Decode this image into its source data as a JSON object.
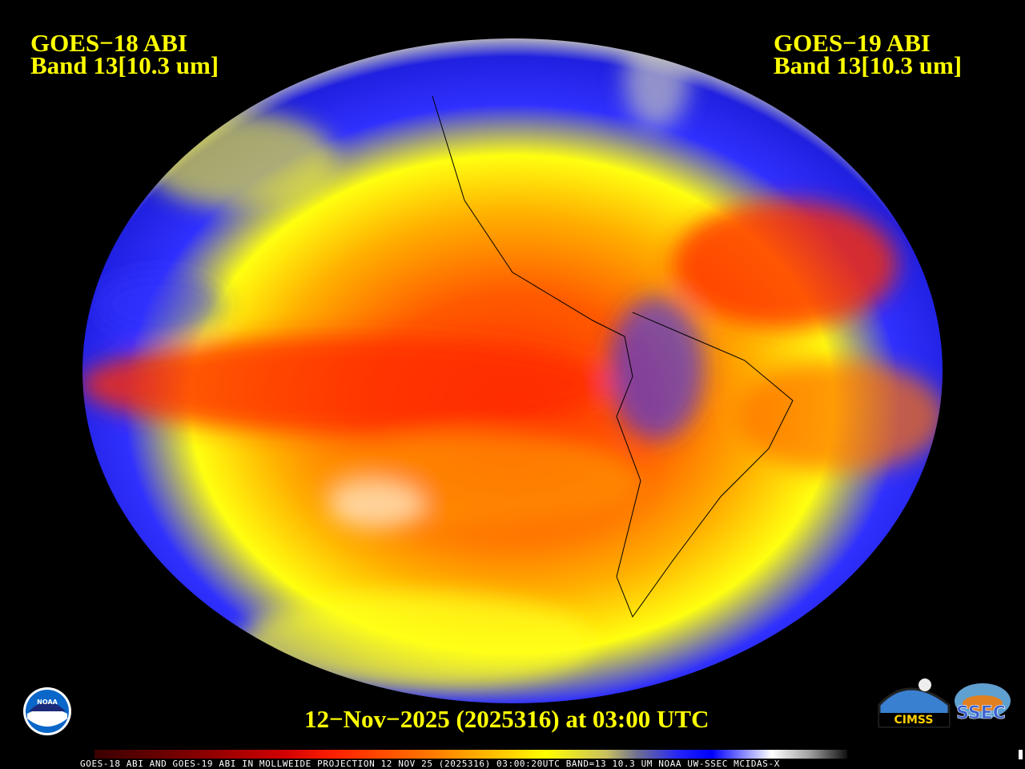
{
  "header": {
    "left_satellite": "GOES−18 ABI",
    "left_band": "Band 13[10.3 um]",
    "right_satellite": "GOES−19 ABI",
    "right_band": "Band 13[10.3 um]"
  },
  "timestamp": "12−Nov−2025 (2025316) at 03:00 UTC",
  "footer": "GOES-18 ABI AND GOES-19 ABI IN MOLLWEIDE PROJECTION 12 NOV 25 (2025316) 03:00:20UTC BAND=13 10.3 UM NOAA UW-SSEC MCIDAS-X",
  "logos": {
    "noaa": "NOAA",
    "cimss": "CIMSS",
    "ssec": "SSEC"
  },
  "colors": {
    "warm": "#ff2000",
    "mid": "#ffff00",
    "cold": "#0000ff",
    "coldest": "#ffffff",
    "text": "#ffff00"
  }
}
